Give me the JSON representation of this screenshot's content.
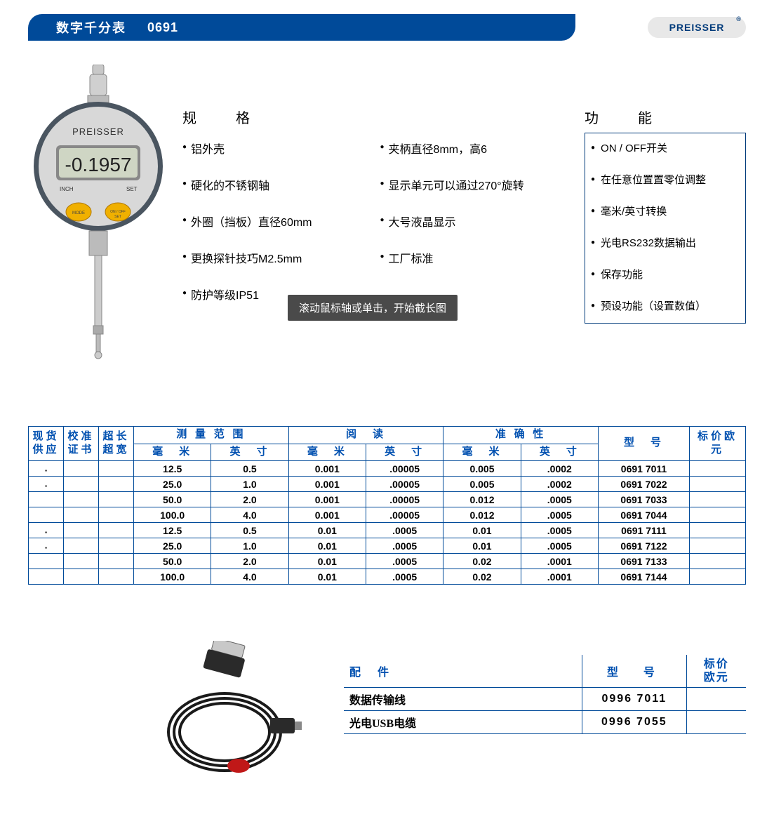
{
  "banner": {
    "title": "数字千分表",
    "code": "0691",
    "brand": "PREISSER",
    "bg_color": "#004a99",
    "text_color": "#ffffff"
  },
  "gauge": {
    "brand": "PREISSER",
    "display_value": "-0.1957",
    "left_label": "INCH",
    "right_label": "SET",
    "btn_left": "MODE",
    "btn_right": "ON / OFF",
    "btn_sub": "SET",
    "body_color": "#4a5560",
    "face_color": "#d8d8d8",
    "lcd_color": "#cfd6c4",
    "btn_color": "#f0b000",
    "line_color": "#888888"
  },
  "spec_heading": "规　格",
  "spec_col1": [
    "铝外壳",
    "硬化的不锈钢轴",
    "外圈（挡板）直径60mm",
    "更换探针技巧M2.5mm",
    "防护等级IP51"
  ],
  "spec_col2": [
    "夹柄直径8mm，高6",
    "显示单元可以通过270°旋转",
    "大号液晶显示",
    "工厂标准"
  ],
  "func_heading": "功　能",
  "func_items": [
    "ON / OFF开关",
    "在任意位置置零位调整",
    "毫米/英寸转换",
    "光电RS232数据输出",
    "保存功能",
    "预设功能（设置数值）"
  ],
  "tooltip_text": "滚动鼠标轴或单击，开始截长图",
  "table": {
    "header_color": "#0050b0",
    "border_color": "#004a99",
    "group_headers": {
      "stock": "现货供应",
      "cert": "校准证书",
      "overlong": "超长超宽",
      "range": "测 量 范 围",
      "reading": "阅　读",
      "accuracy": "准 确 性",
      "model": "型　号",
      "price": "标价欧元"
    },
    "sub_headers": {
      "mm": "毫　米",
      "inch": "英　寸"
    },
    "rows": [
      {
        "stock": "▪",
        "cert": "",
        "ol": "",
        "range_mm": "12.5",
        "range_in": "0.5",
        "read_mm": "0.001",
        "read_in": ".00005",
        "acc_mm": "0.005",
        "acc_in": ".0002",
        "model": "0691 7011",
        "price": ""
      },
      {
        "stock": "▪",
        "cert": "",
        "ol": "",
        "range_mm": "25.0",
        "range_in": "1.0",
        "read_mm": "0.001",
        "read_in": ".00005",
        "acc_mm": "0.005",
        "acc_in": ".0002",
        "model": "0691 7022",
        "price": ""
      },
      {
        "stock": "",
        "cert": "",
        "ol": "",
        "range_mm": "50.0",
        "range_in": "2.0",
        "read_mm": "0.001",
        "read_in": ".00005",
        "acc_mm": "0.012",
        "acc_in": ".0005",
        "model": "0691 7033",
        "price": ""
      },
      {
        "stock": "",
        "cert": "",
        "ol": "",
        "range_mm": "100.0",
        "range_in": "4.0",
        "read_mm": "0.001",
        "read_in": ".00005",
        "acc_mm": "0.012",
        "acc_in": ".0005",
        "model": "0691 7044",
        "price": ""
      },
      {
        "stock": "▪",
        "cert": "",
        "ol": "",
        "range_mm": "12.5",
        "range_in": "0.5",
        "read_mm": "0.01",
        "read_in": ".0005",
        "acc_mm": "0.01",
        "acc_in": ".0005",
        "model": "0691 7111",
        "price": ""
      },
      {
        "stock": "▪",
        "cert": "",
        "ol": "",
        "range_mm": "25.0",
        "range_in": "1.0",
        "read_mm": "0.01",
        "read_in": ".0005",
        "acc_mm": "0.01",
        "acc_in": ".0005",
        "model": "0691 7122",
        "price": ""
      },
      {
        "stock": "",
        "cert": "",
        "ol": "",
        "range_mm": "50.0",
        "range_in": "2.0",
        "read_mm": "0.01",
        "read_in": ".0005",
        "acc_mm": "0.02",
        "acc_in": ".0001",
        "model": "0691 7133",
        "price": ""
      },
      {
        "stock": "",
        "cert": "",
        "ol": "",
        "range_mm": "100.0",
        "range_in": "4.0",
        "read_mm": "0.01",
        "read_in": ".0005",
        "acc_mm": "0.02",
        "acc_in": ".0001",
        "model": "0691 7144",
        "price": ""
      }
    ]
  },
  "cable": {
    "plug_color": "#2a2a2a",
    "cable_color": "#1a1a1a",
    "tag_color": "#c01818"
  },
  "accessories": {
    "heading": "配 件",
    "model_heading": "型　号",
    "price_heading_1": "标价",
    "price_heading_2": "欧元",
    "rows": [
      {
        "name": "数据传输线",
        "model": "0996 7011",
        "price": ""
      },
      {
        "name": "光电USB电缆",
        "model": "0996 7055",
        "price": ""
      }
    ]
  }
}
